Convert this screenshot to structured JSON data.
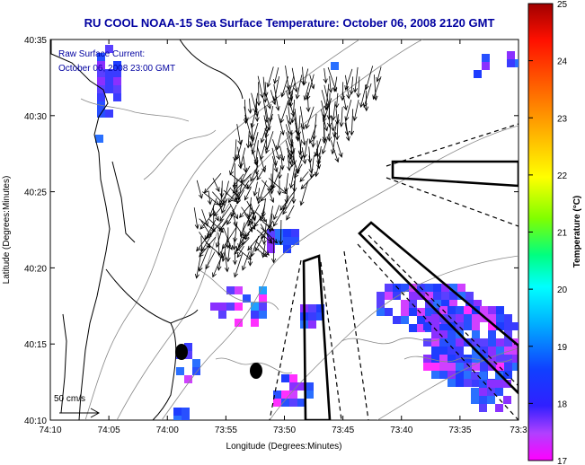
{
  "chart_data": {
    "type": "heatmap",
    "title": "RU COOL  NOAA-15  Sea Surface Temperature:  October 06, 2008 2120 GMT",
    "xlabel": "Longitude (Degrees:Minutes)",
    "ylabel": "Latitude (Degrees:Minutes)",
    "x_ticks": [
      "74:10",
      "74:05",
      "74:00",
      "73:55",
      "73:50",
      "73:45",
      "73:40",
      "73:35",
      "73:3"
    ],
    "y_ticks": [
      "40:10",
      "40:15",
      "40:20",
      "40:25",
      "40:30",
      "40:35"
    ],
    "xlim_minutes_west": [
      10,
      -30
    ],
    "ylim_minutes_north": [
      10,
      35
    ],
    "colorbar": {
      "label": "Temperature (°C)",
      "range": [
        17,
        25
      ],
      "ticks": [
        "17",
        "18",
        "19",
        "20",
        "21",
        "22",
        "23",
        "24",
        "25"
      ]
    },
    "overlay_text": {
      "line1": "Raw Surface Current:",
      "line2": "October 06, 2008 23:00 GMT"
    },
    "reference_vector": {
      "label": "50 cm/s",
      "speed_cm_s": 50
    },
    "colors": {
      "title": "#0000a0",
      "overlay_text": "#0000a0",
      "coast": "#000000",
      "bathymetry": "#888888"
    }
  }
}
